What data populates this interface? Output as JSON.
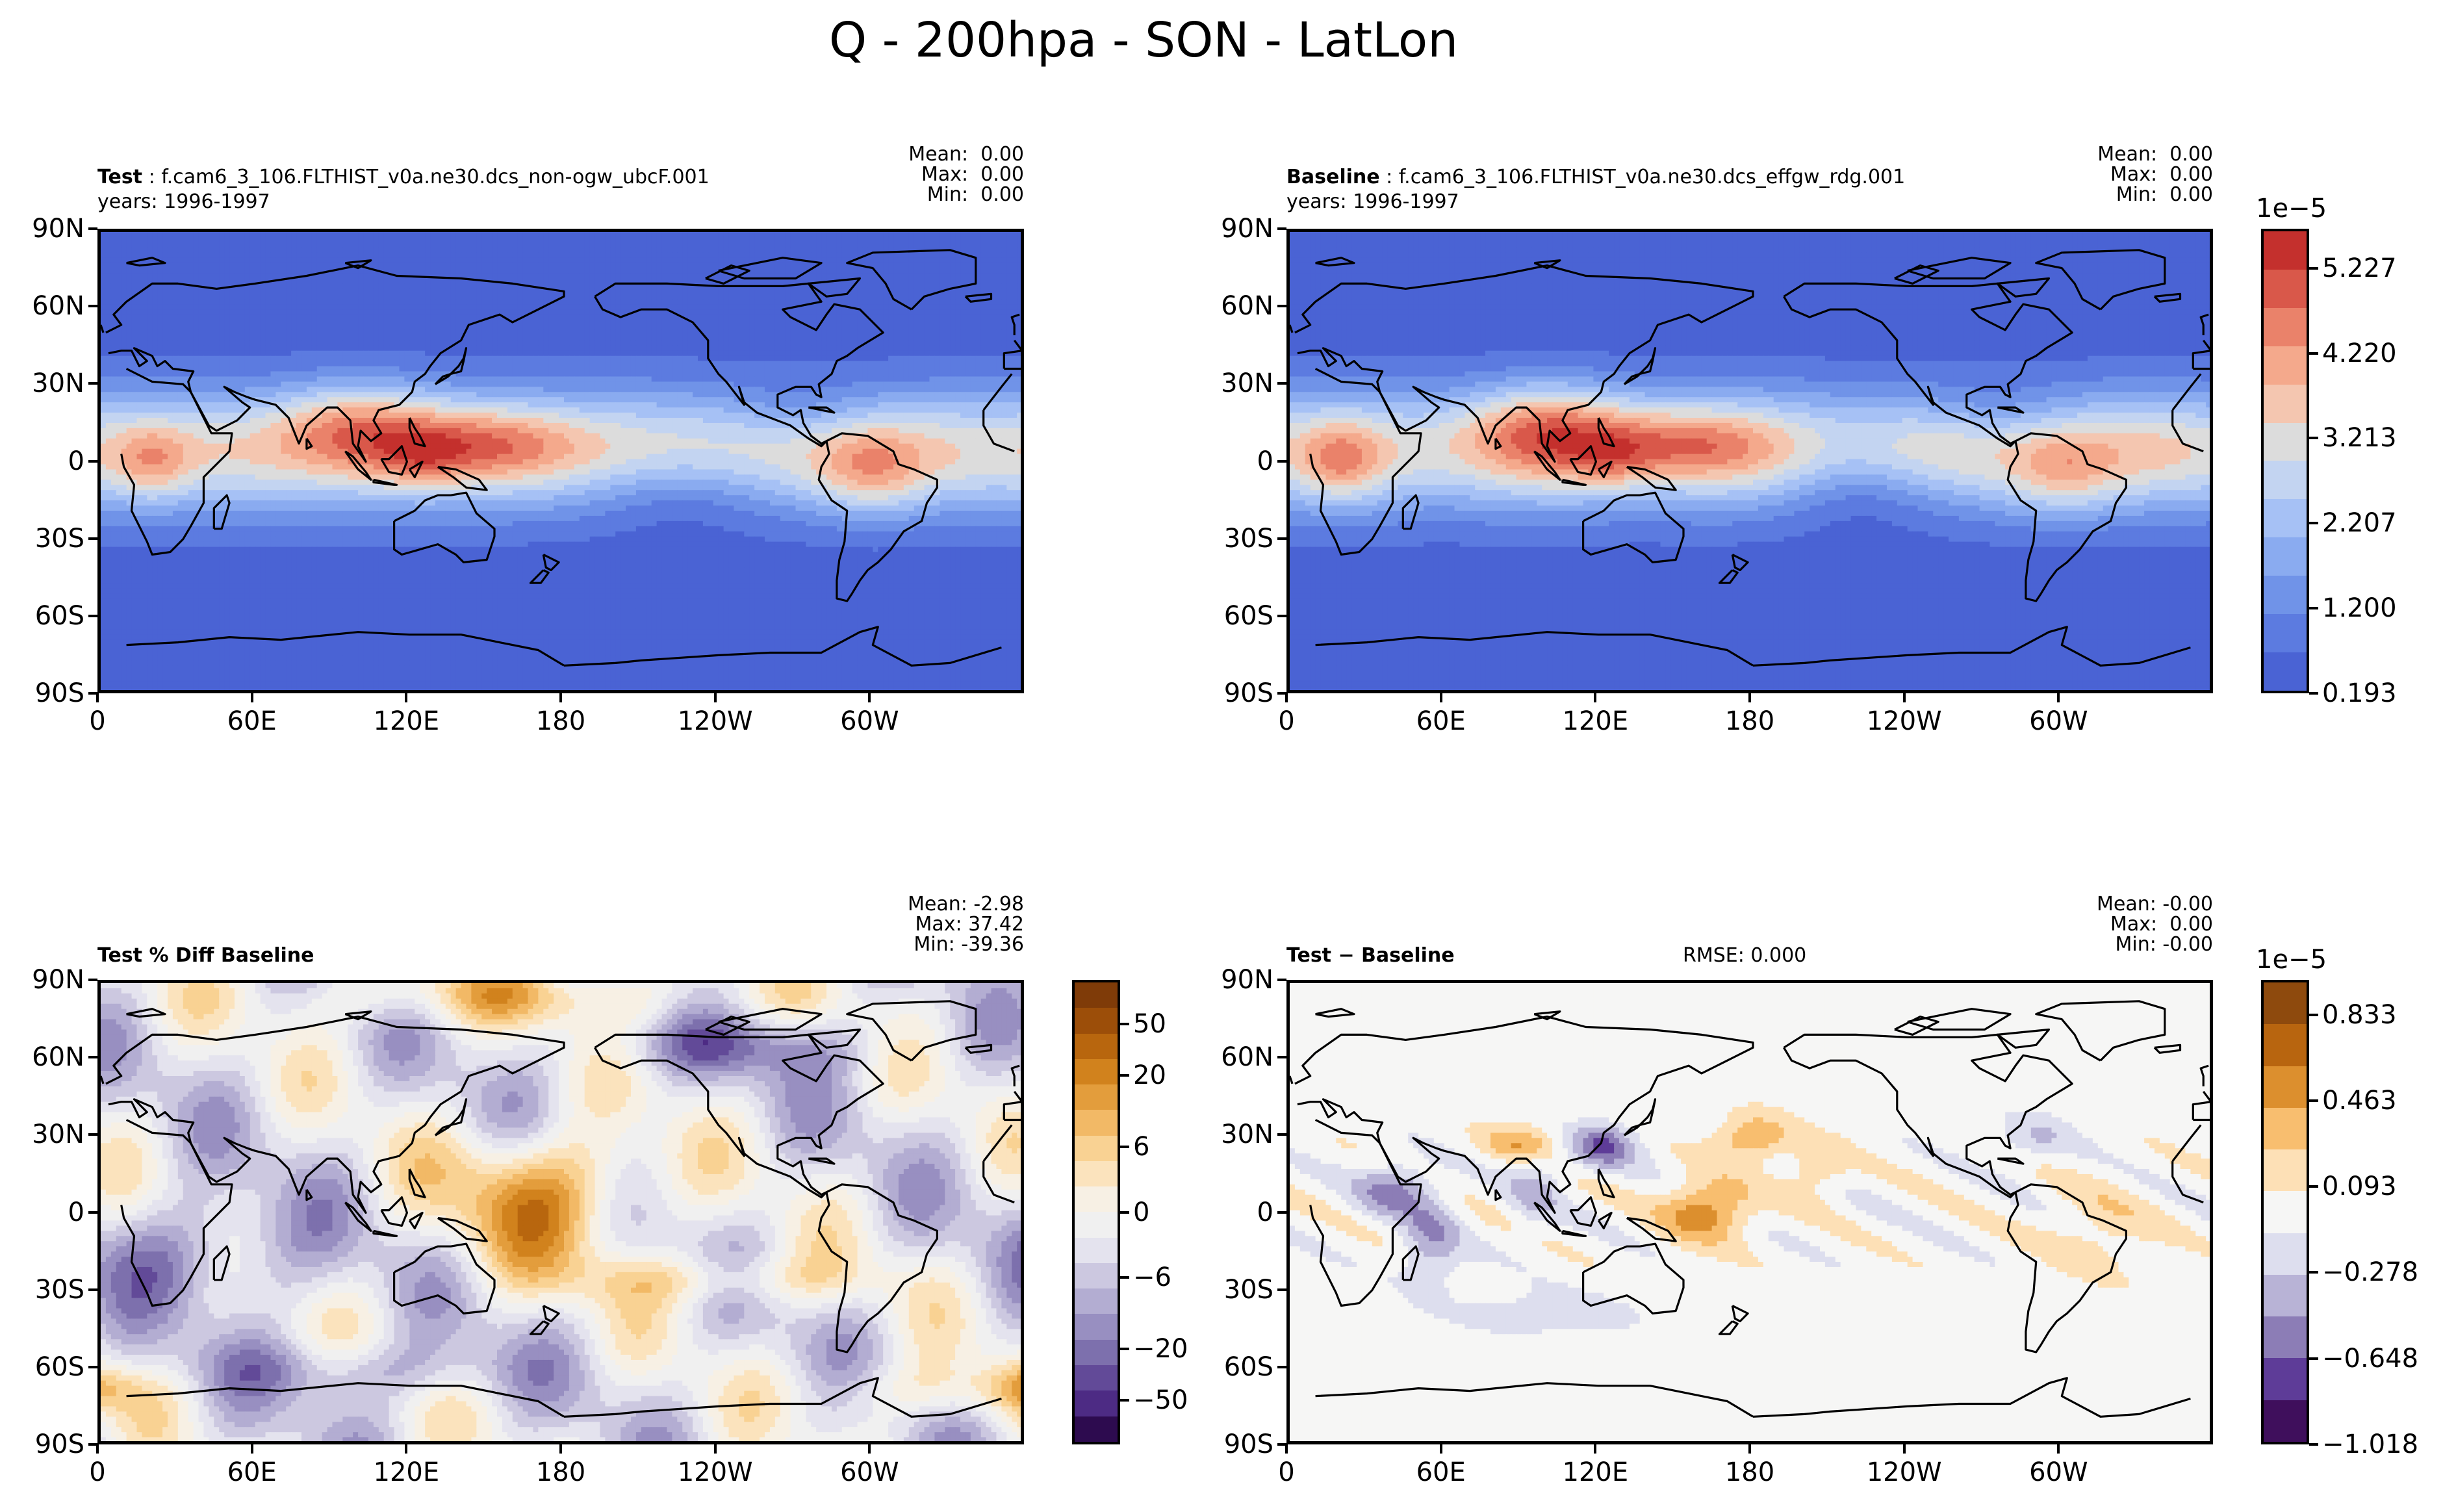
{
  "suptitle": "Q - 200hpa - SON - LatLon",
  "panels": [
    {
      "id": "test",
      "label_bold": "Test",
      "label_rest": " : f.cam6_3_106.FLTHIST_v0a.ne30.dcs_non-ogw_ubcF.001",
      "years": "years: 1996-1997",
      "stats": {
        "mean": "Mean:  0.00",
        "max": "Max:  0.00",
        "min": "Min:  0.00"
      },
      "center_text": "",
      "field": "q"
    },
    {
      "id": "baseline",
      "label_bold": "Baseline",
      "label_rest": " : f.cam6_3_106.FLTHIST_v0a.ne30.dcs_effgw_rdg.001",
      "years": "years: 1996-1997",
      "stats": {
        "mean": "Mean:  0.00",
        "max": "Max:  0.00",
        "min": "Min:  0.00"
      },
      "center_text": "",
      "field": "q"
    },
    {
      "id": "pctdiff",
      "label_bold": "Test % Diff Baseline",
      "label_rest": "",
      "years": "",
      "stats": {
        "mean": "Mean: -2.98",
        "max": "Max: 37.42",
        "min": "Min: -39.36"
      },
      "center_text": "",
      "field": "pct"
    },
    {
      "id": "diff",
      "label_bold": "Test − Baseline",
      "label_rest": "",
      "years": "",
      "stats": {
        "mean": "Mean: -0.00",
        "max": "Max:  0.00",
        "min": "Min: -0.00"
      },
      "center_text": "RMSE: 0.000",
      "field": "diff"
    }
  ],
  "axes": {
    "lat_ticks": [
      "90N",
      "60N",
      "30N",
      "0",
      "30S",
      "60S",
      "90S"
    ],
    "lon_ticks": [
      "0",
      "60E",
      "120E",
      "180",
      "120W",
      "60W"
    ]
  },
  "chart_data": [
    {
      "type": "heatmap",
      "title": "Test : f.cam6_3_106.FLTHIST_v0a.ne30.dcs_non-ogw_ubcF.001",
      "variable": "Q",
      "level": "200hpa",
      "season": "SON",
      "x": "longitude",
      "y": "latitude",
      "xlim": [
        0,
        360
      ],
      "ylim": [
        -90,
        90
      ],
      "value_range": [
        0.193,
        5.5
      ],
      "scale": "1e-5",
      "description_values": {
        "tropical_max": 5.2,
        "polar_min": 0.193
      }
    },
    {
      "type": "heatmap",
      "title": "Baseline : f.cam6_3_106.FLTHIST_v0a.ne30.dcs_effgw_rdg.001",
      "xlim": [
        0,
        360
      ],
      "ylim": [
        -90,
        90
      ],
      "value_range": [
        0.193,
        5.5
      ],
      "scale": "1e-5"
    },
    {
      "type": "heatmap",
      "title": "Test % Diff Baseline",
      "xlim": [
        0,
        360
      ],
      "ylim": [
        -90,
        90
      ],
      "mean": -2.98,
      "max": 37.42,
      "min": -39.36
    },
    {
      "type": "heatmap",
      "title": "Test − Baseline",
      "xlim": [
        0,
        360
      ],
      "ylim": [
        -90,
        90
      ],
      "rmse": 0.0,
      "scale": "1e-5",
      "value_range": [
        -1.018,
        1.0
      ]
    }
  ],
  "colorbars": [
    {
      "id": "abs",
      "exponent": "1e−5",
      "tick_labels": [
        "5.227",
        "4.220",
        "3.213",
        "2.207",
        "1.200",
        "0.193"
      ],
      "colors": [
        "#c4302d",
        "#d9584a",
        "#ea826a",
        "#f4a98c",
        "#f4c6b0",
        "#dcdcdc",
        "#c3d4f1",
        "#a6c1f5",
        "#8aabf0",
        "#7093e8",
        "#5c7be0",
        "#4a63d4"
      ]
    },
    {
      "id": "pct",
      "exponent": "",
      "tick_labels": [
        "50",
        "20",
        "6",
        "0",
        "−6",
        "−20",
        "−50"
      ],
      "colors": [
        "#7f3b08",
        "#9c4e09",
        "#b8660e",
        "#d1821d",
        "#e39d3c",
        "#f2b966",
        "#f9d293",
        "#fbe3bd",
        "#f7f0e4",
        "#f0f0f0",
        "#e4e3ee",
        "#ccc8e0",
        "#b3add2",
        "#988fc1",
        "#7d70ad",
        "#624a98",
        "#4d2b84",
        "#2d0b4f"
      ]
    },
    {
      "id": "diff",
      "exponent": "1e−5",
      "tick_labels": [
        "0.833",
        "0.463",
        "0.093",
        "−0.278",
        "−0.648",
        "−1.018"
      ],
      "colors": [
        "#8e4a0d",
        "#b8650f",
        "#dc8f2e",
        "#f8be6f",
        "#fde0b6",
        "#f6f6f5",
        "#dddeee",
        "#b8b3d6",
        "#8c7db6",
        "#5e3c98",
        "#3f0f5c"
      ]
    }
  ]
}
